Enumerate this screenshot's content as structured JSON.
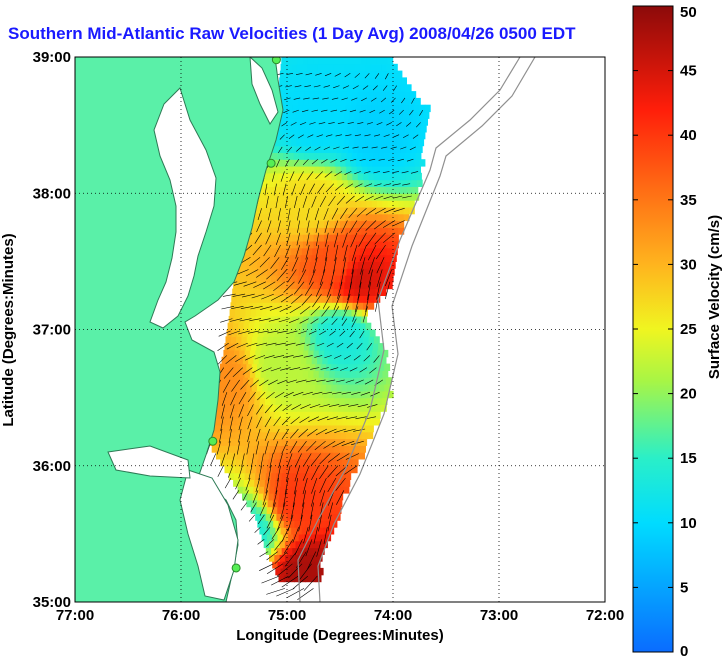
{
  "chart_data": {
    "type": "heatmap",
    "title": "Southern Mid-Atlantic Raw Velocities (1 Day Avg) 2008/04/26 0500 EDT",
    "xlabel": "Longitude (Degrees:Minutes)",
    "ylabel": "Latitude (Degrees:Minutes)",
    "colorbar_label": "Surface Velocity (cm/s)",
    "x_ticks": [
      "77:00",
      "76:00",
      "75:00",
      "74:00",
      "73:00",
      "72:00"
    ],
    "y_ticks": [
      "39:00",
      "38:00",
      "37:00",
      "36:00",
      "35:00"
    ],
    "xlim": [
      -77,
      -72
    ],
    "ylim": [
      35,
      39
    ],
    "colorbar_ticks": [
      "0",
      "5",
      "10",
      "15",
      "20",
      "25",
      "30",
      "35",
      "40",
      "45",
      "50"
    ],
    "colorbar_range": [
      0,
      50
    ],
    "grid": true,
    "colors": {
      "land": "#5af0a8",
      "title": "#1a1aff"
    },
    "hotspots": [
      {
        "lon": -74.35,
        "lat": 37.35,
        "speed": 45
      },
      {
        "lon": -74.55,
        "lat": 37.45,
        "speed": 38
      },
      {
        "lon": -74.85,
        "lat": 35.2,
        "speed": 48
      },
      {
        "lon": -74.95,
        "lat": 35.7,
        "speed": 40
      },
      {
        "lon": -75.6,
        "lat": 36.6,
        "speed": 33
      },
      {
        "lon": -74.75,
        "lat": 38.5,
        "speed": 10
      },
      {
        "lon": -74.2,
        "lat": 38.4,
        "speed": 9
      },
      {
        "lon": -74.5,
        "lat": 36.95,
        "speed": 13
      },
      {
        "lon": -75.1,
        "lat": 36.7,
        "speed": 22
      },
      {
        "lon": -74.8,
        "lat": 37.9,
        "speed": 27
      },
      {
        "lon": -75.35,
        "lat": 35.5,
        "speed": 14
      }
    ],
    "stations": [
      {
        "lon": -75.1,
        "lat": 38.98
      },
      {
        "lon": -75.15,
        "lat": 38.22
      },
      {
        "lon": -75.7,
        "lat": 36.18
      },
      {
        "lon": -75.48,
        "lat": 35.25
      }
    ]
  }
}
